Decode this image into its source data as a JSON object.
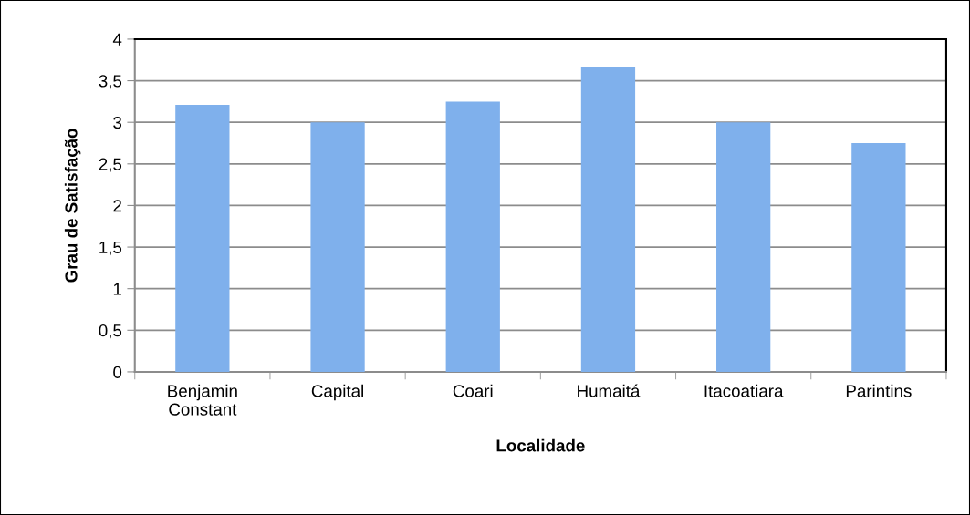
{
  "chart_data": {
    "type": "bar",
    "xlabel": "Localidade",
    "ylabel": "Grau de Satisfação",
    "categories": [
      "Benjamin Constant",
      "Capital",
      "Coari",
      "Humaitá",
      "Itacoatiara",
      "Parintins"
    ],
    "values": [
      3.21,
      3.0,
      3.25,
      3.67,
      3.0,
      2.75
    ],
    "color": "#7fb0ec",
    "ylim": [
      0,
      4
    ],
    "yticks": [
      0,
      {
        "value": 0.5,
        "label": "0,5"
      },
      1,
      {
        "value": 1.5,
        "label": "1,5"
      },
      2,
      {
        "value": 2.5,
        "label": "2,5"
      },
      3,
      {
        "value": 3.5,
        "label": "3,5"
      },
      4
    ],
    "grid": "y",
    "legend": false
  }
}
